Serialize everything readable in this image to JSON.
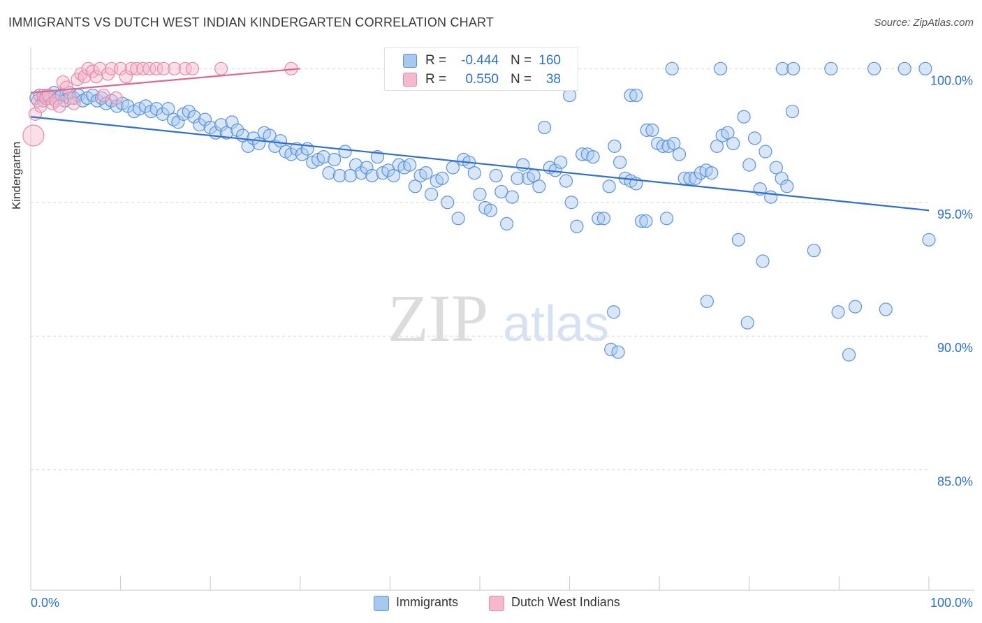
{
  "title": "IMMIGRANTS VS DUTCH WEST INDIAN KINDERGARTEN CORRELATION CHART",
  "source": "Source: ZipAtlas.com",
  "watermark": {
    "zip": "ZIP",
    "atlas": "atlas"
  },
  "colors": {
    "blue_fill": "#a9c8ef",
    "blue_stroke": "#5b93d9",
    "blue_line": "#2f6fd0",
    "pink_fill": "#f4b9cb",
    "pink_stroke": "#e58aa8",
    "pink_line": "#e0658f",
    "tick_label": "#2b6fce",
    "grid": "#d8d8d8"
  },
  "legend_top": {
    "rows": [
      {
        "series": "Immigrants",
        "r_label": "R =",
        "r_value": "-0.444",
        "n_label": "N =",
        "n_value": "160"
      },
      {
        "series": "Dutch West Indians",
        "r_label": "R =",
        "r_value": "0.550",
        "n_label": "N =",
        "n_value": "38"
      }
    ]
  },
  "legend_bottom": [
    "Immigrants",
    "Dutch West Indians"
  ],
  "chart_data": {
    "type": "scatter",
    "title": "IMMIGRANTS VS DUTCH WEST INDIAN KINDERGARTEN CORRELATION CHART",
    "xlabel": "",
    "ylabel": "Kindergarten",
    "xlim": [
      0,
      100
    ],
    "ylim": [
      80.5,
      101
    ],
    "x_tick_labels": [
      "0.0%",
      "100.0%"
    ],
    "y_ticks": [
      {
        "value": 100,
        "label": "100.0%"
      },
      {
        "value": 95,
        "label": "95.0%"
      },
      {
        "value": 90,
        "label": "90.0%"
      },
      {
        "value": 85,
        "label": "85.0%"
      }
    ],
    "grid": true,
    "series": [
      {
        "name": "Immigrants",
        "r": -0.444,
        "n": 160,
        "trend": {
          "x0": 0,
          "y0": 98.2,
          "x1": 100,
          "y1": 94.7
        },
        "points": [
          [
            0.6,
            98.9
          ],
          [
            1.0,
            99.0
          ],
          [
            1.4,
            98.8
          ],
          [
            1.8,
            99.0
          ],
          [
            2.2,
            98.9
          ],
          [
            2.6,
            99.1
          ],
          [
            3.0,
            98.9
          ],
          [
            3.4,
            99.0
          ],
          [
            3.8,
            98.8
          ],
          [
            4.3,
            99.1
          ],
          [
            4.8,
            98.9
          ],
          [
            5.3,
            99.0
          ],
          [
            5.8,
            98.8
          ],
          [
            6.3,
            98.9
          ],
          [
            6.9,
            99.0
          ],
          [
            7.4,
            98.8
          ],
          [
            7.9,
            98.9
          ],
          [
            8.4,
            98.7
          ],
          [
            9.0,
            98.8
          ],
          [
            9.6,
            98.6
          ],
          [
            10.2,
            98.7
          ],
          [
            10.8,
            98.6
          ],
          [
            11.5,
            98.4
          ],
          [
            12.1,
            98.5
          ],
          [
            12.8,
            98.6
          ],
          [
            13.4,
            98.4
          ],
          [
            14.0,
            98.5
          ],
          [
            14.7,
            98.3
          ],
          [
            15.3,
            98.5
          ],
          [
            15.9,
            98.1
          ],
          [
            16.4,
            98.0
          ],
          [
            17.0,
            98.3
          ],
          [
            17.6,
            98.4
          ],
          [
            18.2,
            98.2
          ],
          [
            18.8,
            97.9
          ],
          [
            19.4,
            98.1
          ],
          [
            20.0,
            97.8
          ],
          [
            20.6,
            97.6
          ],
          [
            21.2,
            97.9
          ],
          [
            21.8,
            97.6
          ],
          [
            22.4,
            98.0
          ],
          [
            23.0,
            97.7
          ],
          [
            23.6,
            97.5
          ],
          [
            24.2,
            97.1
          ],
          [
            24.8,
            97.4
          ],
          [
            25.4,
            97.2
          ],
          [
            26.0,
            97.6
          ],
          [
            26.6,
            97.5
          ],
          [
            27.2,
            97.1
          ],
          [
            27.8,
            97.3
          ],
          [
            28.4,
            96.9
          ],
          [
            29.0,
            96.8
          ],
          [
            29.6,
            97.0
          ],
          [
            30.2,
            96.8
          ],
          [
            30.8,
            97.0
          ],
          [
            31.4,
            96.5
          ],
          [
            32.0,
            96.6
          ],
          [
            32.6,
            96.7
          ],
          [
            33.2,
            96.1
          ],
          [
            33.8,
            96.6
          ],
          [
            34.4,
            96.0
          ],
          [
            35.0,
            96.9
          ],
          [
            35.6,
            96.0
          ],
          [
            36.2,
            96.4
          ],
          [
            36.8,
            96.1
          ],
          [
            37.4,
            96.3
          ],
          [
            38.0,
            96.0
          ],
          [
            38.6,
            96.7
          ],
          [
            39.2,
            96.1
          ],
          [
            39.8,
            96.2
          ],
          [
            40.4,
            96.0
          ],
          [
            41.0,
            96.4
          ],
          [
            41.6,
            96.3
          ],
          [
            42.2,
            96.4
          ],
          [
            42.8,
            95.6
          ],
          [
            43.4,
            96.0
          ],
          [
            44.0,
            96.1
          ],
          [
            44.6,
            95.3
          ],
          [
            45.2,
            95.8
          ],
          [
            45.8,
            95.9
          ],
          [
            46.4,
            95.0
          ],
          [
            47.0,
            96.3
          ],
          [
            47.6,
            94.4
          ],
          [
            48.2,
            96.6
          ],
          [
            48.8,
            96.5
          ],
          [
            49.4,
            96.1
          ],
          [
            50.0,
            95.3
          ],
          [
            50.6,
            94.8
          ],
          [
            51.2,
            94.7
          ],
          [
            51.8,
            96.0
          ],
          [
            52.4,
            95.4
          ],
          [
            53.0,
            94.2
          ],
          [
            53.6,
            95.2
          ],
          [
            54.2,
            95.9
          ],
          [
            54.8,
            96.4
          ],
          [
            55.4,
            95.9
          ],
          [
            56.0,
            96.0
          ],
          [
            56.6,
            95.6
          ],
          [
            57.2,
            97.8
          ],
          [
            57.8,
            96.3
          ],
          [
            58.4,
            96.2
          ],
          [
            59.0,
            96.5
          ],
          [
            59.6,
            95.8
          ],
          [
            60.2,
            95.0
          ],
          [
            60.8,
            94.1
          ],
          [
            61.4,
            96.8
          ],
          [
            62.0,
            96.8
          ],
          [
            62.6,
            96.7
          ],
          [
            63.2,
            94.4
          ],
          [
            63.8,
            94.4
          ],
          [
            64.4,
            95.6
          ],
          [
            65.0,
            97.1
          ],
          [
            65.6,
            96.5
          ],
          [
            66.2,
            95.9
          ],
          [
            66.8,
            95.8
          ],
          [
            67.4,
            95.7
          ],
          [
            68.0,
            94.3
          ],
          [
            68.6,
            97.7
          ],
          [
            69.2,
            97.7
          ],
          [
            69.8,
            97.2
          ],
          [
            70.4,
            97.1
          ],
          [
            71.0,
            97.1
          ],
          [
            71.6,
            97.2
          ],
          [
            72.2,
            96.8
          ],
          [
            72.8,
            95.9
          ],
          [
            73.4,
            95.9
          ],
          [
            74.0,
            95.9
          ],
          [
            74.6,
            96.1
          ],
          [
            75.2,
            96.2
          ],
          [
            75.8,
            96.1
          ],
          [
            76.4,
            97.1
          ],
          [
            77.0,
            97.5
          ],
          [
            77.6,
            97.6
          ],
          [
            78.2,
            97.2
          ],
          [
            78.8,
            93.6
          ],
          [
            79.4,
            98.2
          ],
          [
            80.0,
            96.4
          ],
          [
            80.6,
            97.4
          ],
          [
            81.2,
            95.5
          ],
          [
            81.8,
            96.9
          ],
          [
            82.4,
            95.2
          ],
          [
            83.0,
            96.3
          ],
          [
            83.6,
            95.9
          ],
          [
            84.2,
            95.6
          ],
          [
            84.8,
            98.4
          ],
          [
            64.9,
            90.9
          ],
          [
            64.6,
            89.5
          ],
          [
            65.4,
            89.4
          ],
          [
            68.5,
            94.3
          ],
          [
            70.8,
            94.4
          ],
          [
            81.5,
            92.8
          ],
          [
            87.2,
            93.2
          ],
          [
            89.9,
            90.9
          ],
          [
            75.3,
            91.3
          ],
          [
            79.8,
            90.5
          ],
          [
            91.1,
            89.3
          ],
          [
            91.8,
            91.1
          ],
          [
            95.2,
            91.0
          ],
          [
            100.0,
            93.6
          ],
          [
            66.8,
            99.0
          ],
          [
            67.4,
            99.0
          ],
          [
            71.4,
            100.0
          ],
          [
            76.8,
            100.0
          ],
          [
            83.7,
            100.0
          ],
          [
            84.9,
            100.0
          ],
          [
            89.1,
            100.0
          ],
          [
            93.9,
            100.0
          ],
          [
            97.3,
            100.0
          ],
          [
            99.6,
            100.0
          ],
          [
            60.0,
            99.0
          ]
        ]
      },
      {
        "name": "Dutch West Indians",
        "r": 0.55,
        "n": 38,
        "trend": {
          "x0": 0,
          "y0": 99.1,
          "x1": 30,
          "y1": 100.0
        },
        "points": [
          [
            0.3,
            97.5
          ],
          [
            0.5,
            98.3
          ],
          [
            0.8,
            98.8
          ],
          [
            1.1,
            98.6
          ],
          [
            1.4,
            99.0
          ],
          [
            1.7,
            98.9
          ],
          [
            2.0,
            99.0
          ],
          [
            2.4,
            98.7
          ],
          [
            2.8,
            98.8
          ],
          [
            3.2,
            98.6
          ],
          [
            3.6,
            99.5
          ],
          [
            4.0,
            99.3
          ],
          [
            4.4,
            98.9
          ],
          [
            4.8,
            98.7
          ],
          [
            5.2,
            99.6
          ],
          [
            5.6,
            99.8
          ],
          [
            6.0,
            99.7
          ],
          [
            6.4,
            100.0
          ],
          [
            6.9,
            99.9
          ],
          [
            7.3,
            99.7
          ],
          [
            7.7,
            100.0
          ],
          [
            8.1,
            99.0
          ],
          [
            8.6,
            99.8
          ],
          [
            9.0,
            100.0
          ],
          [
            9.5,
            98.9
          ],
          [
            10.0,
            100.0
          ],
          [
            10.6,
            99.7
          ],
          [
            11.2,
            100.0
          ],
          [
            11.8,
            100.0
          ],
          [
            12.5,
            100.0
          ],
          [
            13.2,
            100.0
          ],
          [
            14.0,
            100.0
          ],
          [
            14.8,
            100.0
          ],
          [
            16.0,
            100.0
          ],
          [
            17.2,
            100.0
          ],
          [
            18.0,
            100.0
          ],
          [
            21.2,
            100.0
          ],
          [
            29.0,
            100.0
          ]
        ]
      }
    ]
  }
}
